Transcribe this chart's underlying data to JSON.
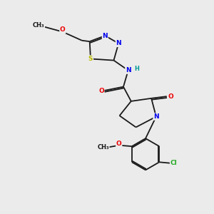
{
  "background_color": "#ebebeb",
  "bond_color": "#1a1a1a",
  "atom_colors": {
    "N": "#0000ee",
    "O": "#ee0000",
    "S": "#bbbb00",
    "Cl": "#22aa22",
    "C": "#1a1a1a",
    "H": "#009999"
  },
  "figsize": [
    3.0,
    3.0
  ],
  "dpi": 100
}
